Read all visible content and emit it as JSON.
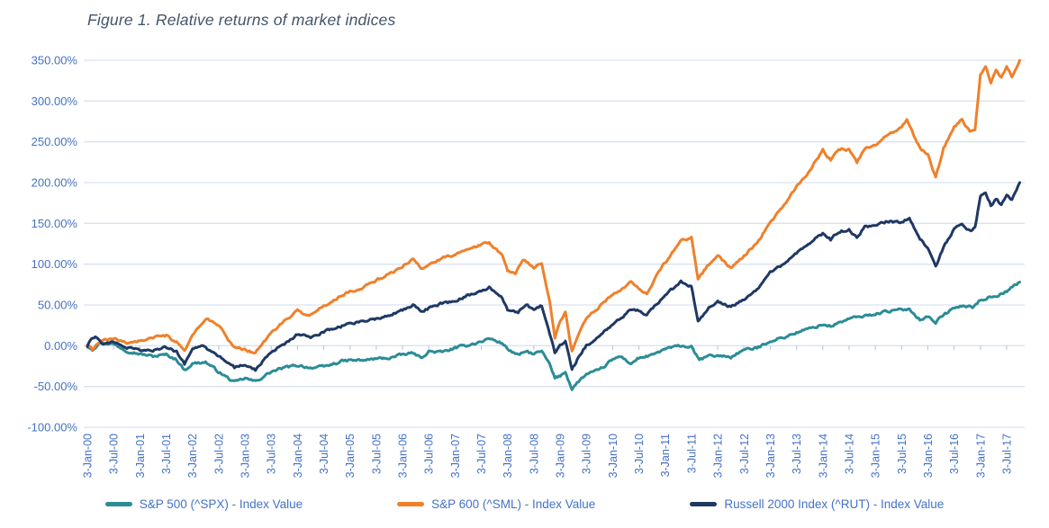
{
  "chart_data": {
    "type": "line",
    "title": "Figure 1. Relative returns of market indices",
    "grid": "horizontal",
    "legend_position": "bottom",
    "colors": {
      "axis_label_blue": "#4472C4",
      "gridline": "#D9E2F2",
      "tick": "#B8C9E4",
      "title": "#44546A"
    },
    "y_axis": {
      "min": -100,
      "max": 350,
      "step": 50,
      "format": "0.00%",
      "tick_labels_top_to_bottom": [
        "350.00%",
        "300.00%",
        "250.00%",
        "200.00%",
        "150.00%",
        "100.00%",
        "50.00%",
        "0.00%",
        "-50.00%",
        "-100.00%"
      ]
    },
    "x_axis": {
      "tick_labels": [
        "3-Jan-00",
        "3-Jul-00",
        "3-Jan-01",
        "3-Jul-01",
        "3-Jan-02",
        "3-Jul-02",
        "3-Jan-03",
        "3-Jul-03",
        "3-Jan-04",
        "3-Jul-04",
        "3-Jan-05",
        "3-Jul-05",
        "3-Jan-06",
        "3-Jul-06",
        "3-Jan-07",
        "3-Jul-07",
        "3-Jan-08",
        "3-Jul-08",
        "3-Jan-09",
        "3-Jul-09",
        "3-Jan-10",
        "3-Jul-10",
        "3-Jan-11",
        "3-Jul-11",
        "3-Jan-12",
        "3-Jul-12",
        "3-Jan-13",
        "3-Jul-13",
        "3-Jan-14",
        "3-Jul-14",
        "3-Jan-15",
        "3-Jul-15",
        "3-Jan-16",
        "3-Jul-16",
        "3-Jan-17",
        "3-Jul-17"
      ],
      "label_rotation_deg": -90,
      "unit": "half-year ticks, daily data line"
    },
    "series": [
      {
        "name": "S&P 500 (^SPX) - Index Value",
        "color": "#2B8C96",
        "points_t_halfyears_v_pct": [
          [
            0,
            0
          ],
          [
            0.2,
            -4
          ],
          [
            0.5,
            4
          ],
          [
            1,
            2
          ],
          [
            1.5,
            -6
          ],
          [
            2,
            -10
          ],
          [
            2.5,
            -13
          ],
          [
            3,
            -11
          ],
          [
            3.4,
            -17
          ],
          [
            3.7,
            -30
          ],
          [
            4,
            -22
          ],
          [
            4.5,
            -20
          ],
          [
            5,
            -32
          ],
          [
            5.6,
            -45
          ],
          [
            6,
            -40
          ],
          [
            6.4,
            -44
          ],
          [
            7,
            -32
          ],
          [
            7.5,
            -27
          ],
          [
            8,
            -24
          ],
          [
            8.5,
            -27
          ],
          [
            9,
            -26
          ],
          [
            9.7,
            -19
          ],
          [
            10,
            -18
          ],
          [
            10.5,
            -18
          ],
          [
            11,
            -16
          ],
          [
            11.5,
            -15
          ],
          [
            12,
            -11
          ],
          [
            12.4,
            -9
          ],
          [
            12.7,
            -15
          ],
          [
            13,
            -7
          ],
          [
            13.5,
            -8
          ],
          [
            14,
            -3
          ],
          [
            14.5,
            1
          ],
          [
            15,
            5
          ],
          [
            15.3,
            9
          ],
          [
            15.8,
            3
          ],
          [
            16,
            -4
          ],
          [
            16.4,
            -12
          ],
          [
            16.7,
            -7
          ],
          [
            17,
            -10
          ],
          [
            17.3,
            -7
          ],
          [
            17.6,
            -23
          ],
          [
            17.8,
            -40
          ],
          [
            18,
            -37
          ],
          [
            18.2,
            -32
          ],
          [
            18.45,
            -53
          ],
          [
            18.7,
            -44
          ],
          [
            19,
            -35
          ],
          [
            19.5,
            -30
          ],
          [
            20,
            -17
          ],
          [
            20.3,
            -13
          ],
          [
            20.7,
            -22
          ],
          [
            21,
            -15
          ],
          [
            21.5,
            -12
          ],
          [
            22,
            -4
          ],
          [
            22.6,
            0
          ],
          [
            23,
            -2
          ],
          [
            23.3,
            -18
          ],
          [
            23.6,
            -13
          ],
          [
            24,
            -12
          ],
          [
            24.5,
            -14
          ],
          [
            25,
            -5
          ],
          [
            25.5,
            -3
          ],
          [
            26,
            6
          ],
          [
            26.5,
            10
          ],
          [
            27,
            16
          ],
          [
            27.5,
            21
          ],
          [
            28,
            26
          ],
          [
            28.3,
            24
          ],
          [
            29,
            33
          ],
          [
            29.5,
            36
          ],
          [
            30,
            39
          ],
          [
            30.4,
            42
          ],
          [
            31,
            44
          ],
          [
            31.3,
            45
          ],
          [
            31.7,
            32
          ],
          [
            32,
            36
          ],
          [
            32.3,
            29
          ],
          [
            32.6,
            38
          ],
          [
            33,
            46
          ],
          [
            33.4,
            49
          ],
          [
            33.7,
            47
          ],
          [
            34,
            56
          ],
          [
            34.4,
            60
          ],
          [
            34.7,
            62
          ],
          [
            35,
            67
          ],
          [
            35.5,
            78
          ]
        ]
      },
      {
        "name": "S&P 600 (^SML) - Index Value",
        "color": "#F0802A",
        "points_t_halfyears_v_pct": [
          [
            0,
            0
          ],
          [
            0.2,
            -5
          ],
          [
            0.5,
            6
          ],
          [
            1,
            8
          ],
          [
            1.5,
            4
          ],
          [
            2,
            6
          ],
          [
            2.5,
            10
          ],
          [
            3,
            12
          ],
          [
            3.4,
            4
          ],
          [
            3.7,
            -8
          ],
          [
            4,
            12
          ],
          [
            4.3,
            25
          ],
          [
            4.6,
            33
          ],
          [
            5,
            25
          ],
          [
            5.3,
            10
          ],
          [
            5.6,
            -2
          ],
          [
            6,
            -5
          ],
          [
            6.4,
            -9
          ],
          [
            7,
            16
          ],
          [
            7.5,
            30
          ],
          [
            8,
            42
          ],
          [
            8.5,
            38
          ],
          [
            9,
            48
          ],
          [
            9.7,
            62
          ],
          [
            10,
            66
          ],
          [
            10.5,
            72
          ],
          [
            11,
            80
          ],
          [
            11.5,
            88
          ],
          [
            12,
            97
          ],
          [
            12.4,
            107
          ],
          [
            12.7,
            95
          ],
          [
            13,
            98
          ],
          [
            13.5,
            108
          ],
          [
            14,
            112
          ],
          [
            14.5,
            120
          ],
          [
            15,
            124
          ],
          [
            15.3,
            127
          ],
          [
            15.8,
            112
          ],
          [
            16,
            92
          ],
          [
            16.3,
            88
          ],
          [
            16.6,
            106
          ],
          [
            17,
            96
          ],
          [
            17.3,
            101
          ],
          [
            17.6,
            55
          ],
          [
            17.8,
            10
          ],
          [
            18,
            30
          ],
          [
            18.2,
            40
          ],
          [
            18.45,
            -7
          ],
          [
            18.7,
            12
          ],
          [
            19,
            35
          ],
          [
            19.5,
            48
          ],
          [
            20,
            62
          ],
          [
            20.4,
            70
          ],
          [
            20.7,
            78
          ],
          [
            21,
            70
          ],
          [
            21.3,
            64
          ],
          [
            21.7,
            88
          ],
          [
            22,
            102
          ],
          [
            22.6,
            128
          ],
          [
            23,
            133
          ],
          [
            23.25,
            80
          ],
          [
            23.6,
            98
          ],
          [
            24,
            110
          ],
          [
            24.5,
            96
          ],
          [
            25,
            110
          ],
          [
            25.5,
            126
          ],
          [
            26,
            152
          ],
          [
            26.5,
            170
          ],
          [
            27,
            195
          ],
          [
            27.5,
            215
          ],
          [
            28,
            240
          ],
          [
            28.3,
            228
          ],
          [
            28.6,
            242
          ],
          [
            29,
            240
          ],
          [
            29.3,
            224
          ],
          [
            29.6,
            242
          ],
          [
            30,
            246
          ],
          [
            30.4,
            258
          ],
          [
            31,
            268
          ],
          [
            31.2,
            277
          ],
          [
            31.7,
            242
          ],
          [
            32,
            234
          ],
          [
            32.3,
            206
          ],
          [
            32.6,
            242
          ],
          [
            33,
            268
          ],
          [
            33.3,
            277
          ],
          [
            33.6,
            262
          ],
          [
            33.8,
            266
          ],
          [
            34,
            332
          ],
          [
            34.2,
            343
          ],
          [
            34.4,
            323
          ],
          [
            34.6,
            338
          ],
          [
            34.8,
            328
          ],
          [
            35,
            341
          ],
          [
            35.2,
            330
          ],
          [
            35.5,
            350
          ]
        ]
      },
      {
        "name": "Russell 2000 Index (^RUT) - Index Value",
        "color": "#1F3864",
        "points_t_halfyears_v_pct": [
          [
            0,
            0
          ],
          [
            0.15,
            9
          ],
          [
            0.3,
            12
          ],
          [
            0.6,
            2
          ],
          [
            1,
            5
          ],
          [
            1.5,
            -2
          ],
          [
            2,
            -5
          ],
          [
            2.5,
            -6
          ],
          [
            3,
            -2
          ],
          [
            3.4,
            -8
          ],
          [
            3.7,
            -22
          ],
          [
            4,
            -3
          ],
          [
            4.4,
            -1
          ],
          [
            5,
            -13
          ],
          [
            5.6,
            -27
          ],
          [
            6,
            -23
          ],
          [
            6.4,
            -30
          ],
          [
            7,
            -7
          ],
          [
            7.5,
            2
          ],
          [
            8,
            14
          ],
          [
            8.5,
            10
          ],
          [
            9,
            17
          ],
          [
            9.7,
            24
          ],
          [
            10,
            27
          ],
          [
            10.5,
            30
          ],
          [
            11,
            33
          ],
          [
            11.5,
            38
          ],
          [
            12,
            44
          ],
          [
            12.4,
            50
          ],
          [
            12.7,
            42
          ],
          [
            13,
            46
          ],
          [
            13.5,
            52
          ],
          [
            14,
            55
          ],
          [
            14.5,
            62
          ],
          [
            15,
            66
          ],
          [
            15.3,
            71
          ],
          [
            15.8,
            58
          ],
          [
            16,
            44
          ],
          [
            16.4,
            40
          ],
          [
            16.7,
            52
          ],
          [
            17,
            44
          ],
          [
            17.3,
            49
          ],
          [
            17.6,
            15
          ],
          [
            17.8,
            -8
          ],
          [
            18,
            0
          ],
          [
            18.2,
            6
          ],
          [
            18.45,
            -30
          ],
          [
            18.7,
            -14
          ],
          [
            19,
            0
          ],
          [
            19.5,
            12
          ],
          [
            20,
            27
          ],
          [
            20.4,
            36
          ],
          [
            20.7,
            44
          ],
          [
            21,
            43
          ],
          [
            21.3,
            38
          ],
          [
            21.7,
            52
          ],
          [
            22,
            62
          ],
          [
            22.6,
            78
          ],
          [
            23,
            72
          ],
          [
            23.25,
            28
          ],
          [
            23.6,
            45
          ],
          [
            24,
            55
          ],
          [
            24.5,
            48
          ],
          [
            25,
            57
          ],
          [
            25.5,
            68
          ],
          [
            26,
            90
          ],
          [
            26.5,
            100
          ],
          [
            27,
            113
          ],
          [
            27.5,
            126
          ],
          [
            28,
            138
          ],
          [
            28.3,
            130
          ],
          [
            28.6,
            140
          ],
          [
            29,
            142
          ],
          [
            29.3,
            132
          ],
          [
            29.6,
            146
          ],
          [
            30,
            148
          ],
          [
            30.4,
            152
          ],
          [
            31,
            152
          ],
          [
            31.3,
            157
          ],
          [
            31.7,
            132
          ],
          [
            32,
            118
          ],
          [
            32.3,
            96
          ],
          [
            32.6,
            122
          ],
          [
            33,
            143
          ],
          [
            33.3,
            150
          ],
          [
            33.6,
            140
          ],
          [
            33.8,
            145
          ],
          [
            34,
            183
          ],
          [
            34.2,
            188
          ],
          [
            34.4,
            172
          ],
          [
            34.6,
            180
          ],
          [
            34.8,
            172
          ],
          [
            35,
            185
          ],
          [
            35.2,
            178
          ],
          [
            35.5,
            200
          ]
        ]
      }
    ]
  }
}
